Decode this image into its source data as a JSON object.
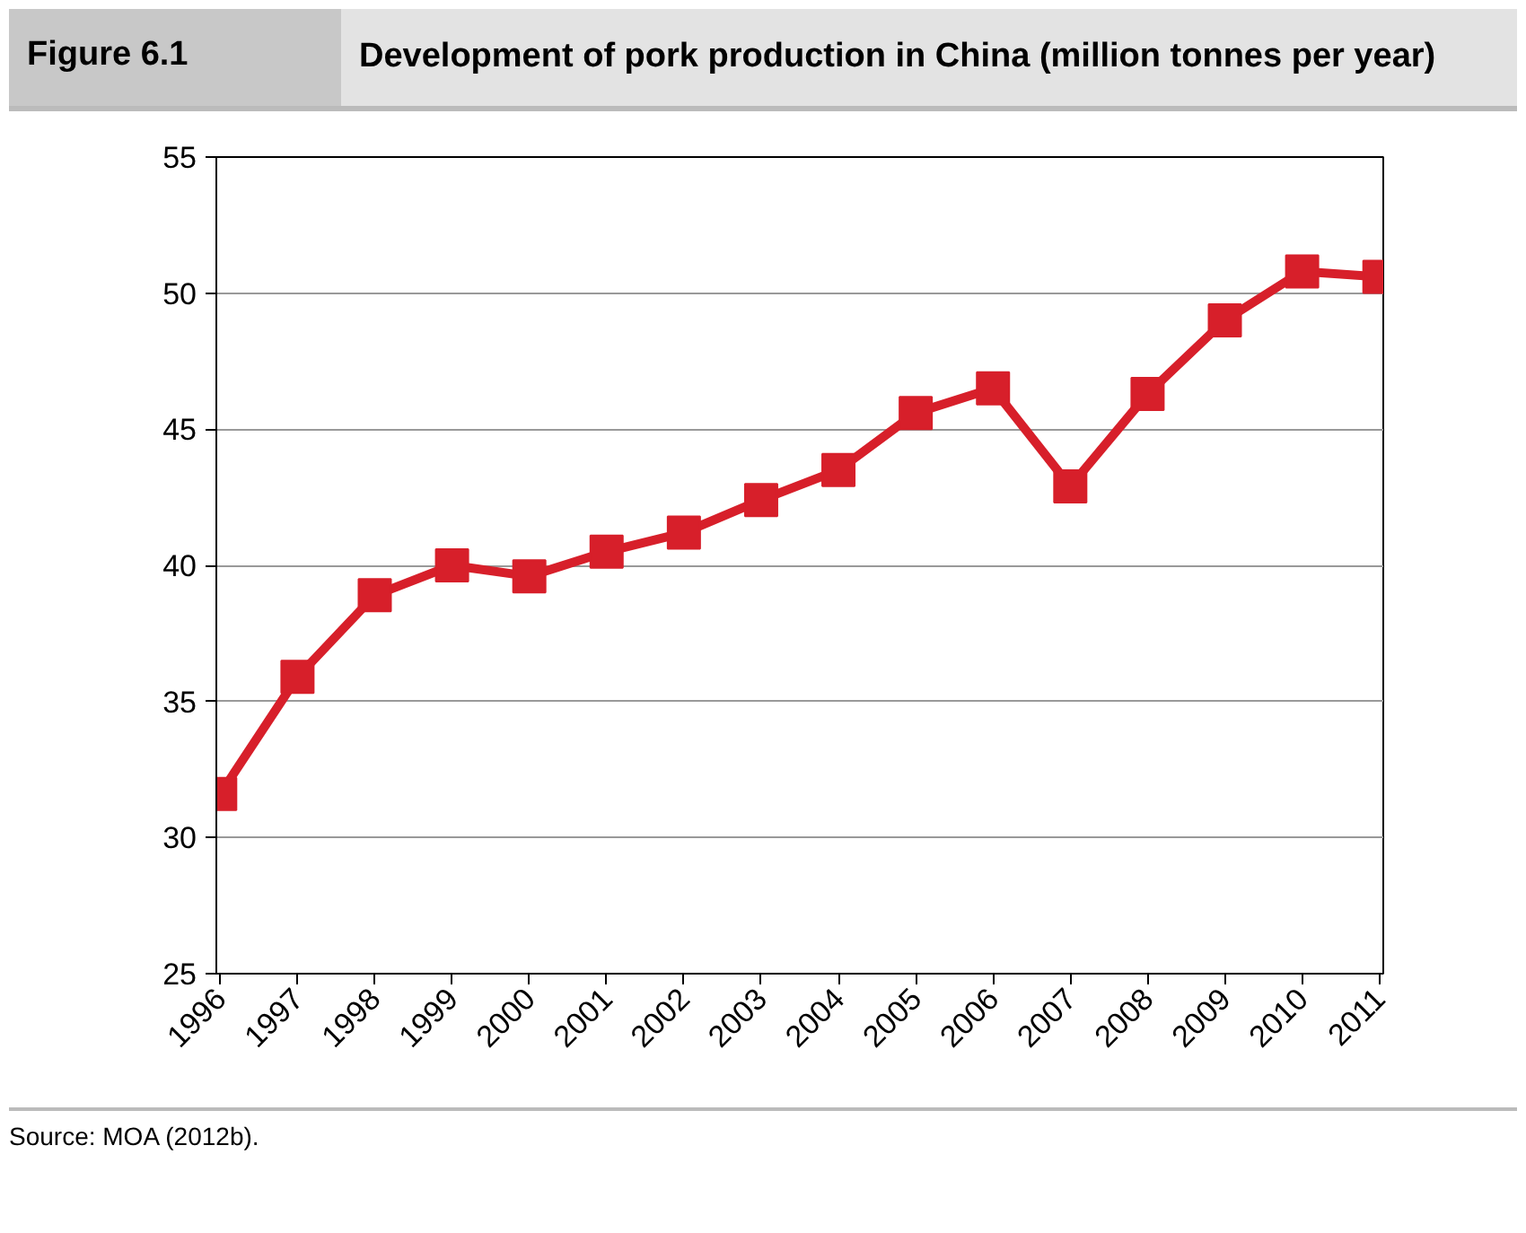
{
  "chart_data": {
    "type": "line",
    "subtitle": "Figure 6.1",
    "title": "Development of pork production in China (million tonnes per year)",
    "categories": [
      "1996",
      "1997",
      "1998",
      "1999",
      "2000",
      "2001",
      "2002",
      "2003",
      "2004",
      "2005",
      "2006",
      "2007",
      "2008",
      "2009",
      "2010",
      "2011"
    ],
    "series": [
      {
        "color": "#d71f2a",
        "values": [
          31.6,
          35.9,
          38.9,
          40.0,
          39.6,
          40.5,
          41.2,
          42.4,
          43.5,
          45.6,
          46.5,
          42.9,
          46.3,
          49.0,
          50.8,
          50.6
        ]
      }
    ],
    "ylim": [
      25,
      55
    ],
    "yticks": [
      25,
      30,
      35,
      40,
      45,
      50,
      55
    ],
    "grid": "y",
    "marker": "square",
    "line_style": "solid",
    "annotations": [
      "Source: MOA (2012b)."
    ]
  }
}
